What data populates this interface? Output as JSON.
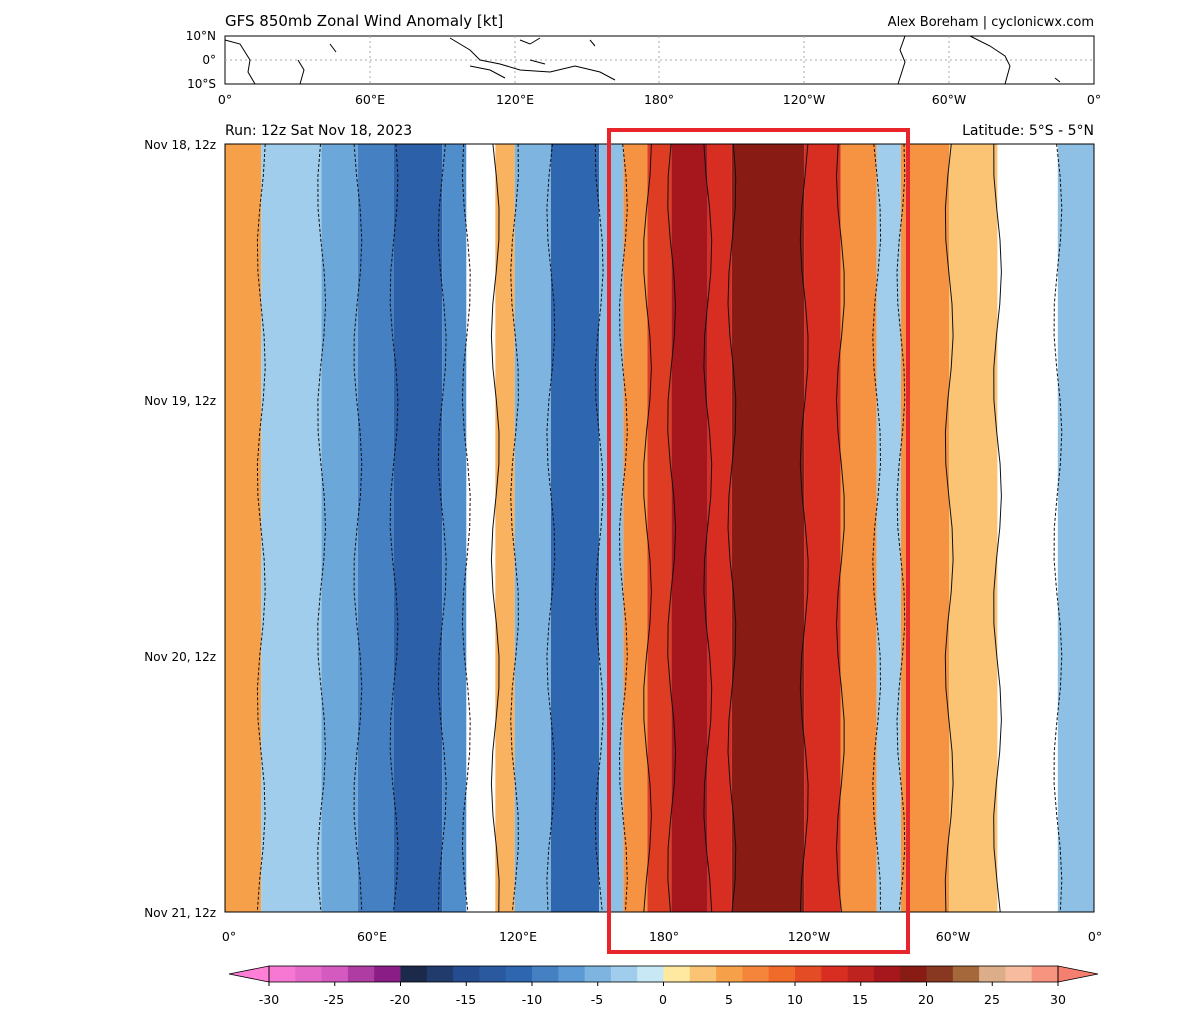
{
  "title": "GFS 850mb Zonal Wind Anomaly [kt]",
  "credit": "Alex Boreham | cyclonicwx.com",
  "run_label": "Run: 12z Sat Nov 18, 2023",
  "latitude_label": "Latitude: 5°S - 5°N",
  "map_lat_ticks": [
    "10°N",
    "0°",
    "10°S"
  ],
  "lon_ticks": [
    "0°",
    "60°E",
    "120°E",
    "180°",
    "120°W",
    "60°W",
    "0°"
  ],
  "time_ticks": [
    "Nov 18, 12z",
    "Nov 19, 12z",
    "Nov 20, 12z",
    "Nov 21, 12z"
  ],
  "colorbar_ticks": [
    "-30",
    "-25",
    "-20",
    "-15",
    "-10",
    "-5",
    "0",
    "5",
    "10",
    "15",
    "20",
    "25",
    "30"
  ],
  "highlight_color": "#e8252b",
  "chart_data": {
    "type": "heatmap",
    "title": "GFS 850mb Zonal Wind Anomaly [kt]",
    "xlabel": "",
    "ylabel": "",
    "x_range_deg_east": [
      0,
      360
    ],
    "time_range": [
      "Nov 18, 12z",
      "Nov 21, 12z"
    ],
    "colorbar_range": [
      -30,
      30
    ],
    "colorbar_step": 2,
    "highlight_box_lon_range": [
      "~157°E",
      "~85°W"
    ],
    "anomaly_bands": [
      {
        "lon_start": 0,
        "lon_end": 15,
        "value": 5
      },
      {
        "lon_start": 15,
        "lon_end": 40,
        "value": -3
      },
      {
        "lon_start": 40,
        "lon_end": 55,
        "value": -6
      },
      {
        "lon_start": 55,
        "lon_end": 70,
        "value": -9
      },
      {
        "lon_start": 70,
        "lon_end": 90,
        "value": -12
      },
      {
        "lon_start": 90,
        "lon_end": 100,
        "value": -8
      },
      {
        "lon_start": 100,
        "lon_end": 112,
        "value": 0
      },
      {
        "lon_start": 112,
        "lon_end": 120,
        "value": 4
      },
      {
        "lon_start": 120,
        "lon_end": 135,
        "value": -5
      },
      {
        "lon_start": 135,
        "lon_end": 155,
        "value": -11
      },
      {
        "lon_start": 155,
        "lon_end": 165,
        "value": -4
      },
      {
        "lon_start": 165,
        "lon_end": 175,
        "value": 6
      },
      {
        "lon_start": 175,
        "lon_end": 185,
        "value": 12
      },
      {
        "lon_start": 185,
        "lon_end": 200,
        "value": 17
      },
      {
        "lon_start": 200,
        "lon_end": 210,
        "value": 13
      },
      {
        "lon_start": 210,
        "lon_end": 240,
        "value": 19
      },
      {
        "lon_start": 240,
        "lon_end": 255,
        "value": 13
      },
      {
        "lon_start": 255,
        "lon_end": 270,
        "value": 6
      },
      {
        "lon_start": 270,
        "lon_end": 280,
        "value": -3
      },
      {
        "lon_start": 280,
        "lon_end": 300,
        "value": 6
      },
      {
        "lon_start": 300,
        "lon_end": 320,
        "value": 3
      },
      {
        "lon_start": 320,
        "lon_end": 345,
        "value": 0
      },
      {
        "lon_start": 345,
        "lon_end": 360,
        "value": -4
      }
    ]
  }
}
